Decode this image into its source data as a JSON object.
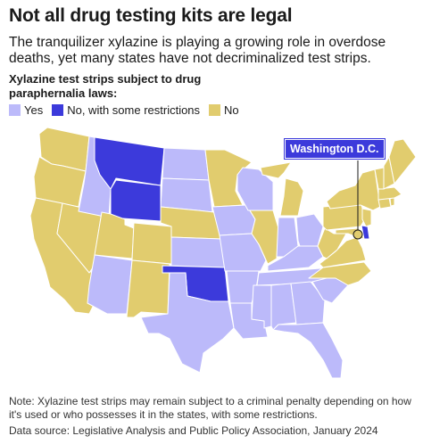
{
  "title": "Not all drug testing kits are legal",
  "subtitle": "The tranquilizer xylazine is playing a growing role in overdose deaths, yet many states have not decriminalized test strips.",
  "legend": {
    "title": "Xylazine test strips subject to drug paraphernalia laws:",
    "items": [
      {
        "label": "Yes",
        "color": "#bcbafa"
      },
      {
        "label": "No, with some restrictions",
        "color": "#3c3adb"
      },
      {
        "label": "No",
        "color": "#e1cc6e"
      }
    ]
  },
  "callout": "Washington D.C.",
  "note": "Note: Xylazine test strips may remain subject to a criminal penalty depending on how it's used or who possesses it in the states, with some restrictions.",
  "source": "Data source: Legislative Analysis and Public Policy Association, January 2024",
  "map_data": {
    "Yes": [
      "Idaho",
      "North Dakota",
      "South Dakota",
      "Iowa",
      "Missouri",
      "Arkansas",
      "Louisiana",
      "Mississippi",
      "Alabama",
      "Georgia",
      "Florida",
      "South Carolina",
      "Tennessee",
      "Kentucky",
      "Indiana",
      "Ohio",
      "Wisconsin",
      "Texas",
      "Arizona",
      "Kansas"
    ],
    "No, with some restrictions": [
      "Montana",
      "Wyoming",
      "Oklahoma",
      "Delaware"
    ],
    "No": [
      "Washington",
      "Oregon",
      "California",
      "Nevada",
      "Utah",
      "Colorado",
      "New Mexico",
      "Nebraska",
      "Minnesota",
      "Illinois",
      "Michigan",
      "Pennsylvania",
      "New York",
      "West Virginia",
      "Virginia",
      "North Carolina",
      "Maryland",
      "New Jersey",
      "Connecticut",
      "Rhode Island",
      "Massachusetts",
      "Vermont",
      "New Hampshire",
      "Maine",
      "Washington D.C."
    ]
  }
}
